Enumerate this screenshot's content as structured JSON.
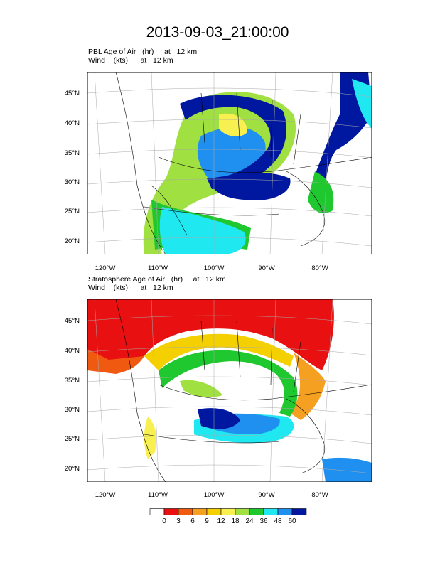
{
  "title": "2013-09-03_21:00:00",
  "panels": [
    {
      "name": "pbl",
      "line1": "PBL Age of Air   (hr)     at   12 km",
      "line2": "Wind    (kts)      at   12 km",
      "lat_labels": [
        "45°N",
        "40°N",
        "35°N",
        "30°N",
        "25°N",
        "20°N"
      ],
      "lon_labels": [
        "120°W",
        "110°W",
        "100°W",
        "90°W",
        "80°W"
      ]
    },
    {
      "name": "stratosphere",
      "line1": "Stratosphere Age of Air   (hr)     at   12 km",
      "line2": "Wind    (kts)      at   12 km",
      "lat_labels": [
        "45°N",
        "40°N",
        "35°N",
        "30°N",
        "25°N",
        "20°N"
      ],
      "lon_labels": [
        "120°W",
        "110°W",
        "100°W",
        "90°W",
        "80°W"
      ]
    }
  ],
  "colorbar": {
    "labels": [
      "0",
      "3",
      "6",
      "9",
      "12",
      "18",
      "24",
      "36",
      "48",
      "60"
    ],
    "colors": [
      "#ffffff",
      "#e81010",
      "#f05a10",
      "#f5a020",
      "#f5d000",
      "#f8f050",
      "#a0e040",
      "#20c830",
      "#20e8f0",
      "#2090f0",
      "#0018a0"
    ]
  }
}
